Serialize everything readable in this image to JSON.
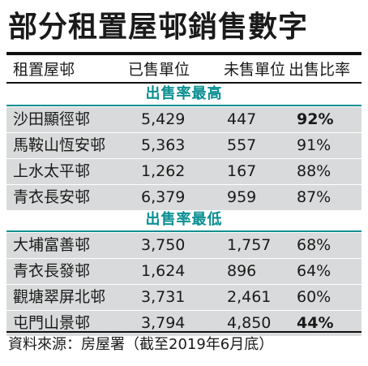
{
  "title": "部分租置屋邨銷售數字",
  "headers": [
    "租置屋邨",
    "已售單位",
    "未售單位",
    "出售比率"
  ],
  "section_high": "出售率最高",
  "section_low": "出售率最低",
  "rows_high": [
    {
      "name": "沙田顯徑邨",
      "sold": "5,429",
      "unsold": "447",
      "ratio": "92%",
      "emphasis": true
    },
    {
      "name": "馬鞍山恆安邨",
      "sold": "5,363",
      "unsold": "557",
      "ratio": "91%",
      "emphasis": false
    },
    {
      "name": "上水太平邨",
      "sold": "1,262",
      "unsold": "167",
      "ratio": "88%",
      "emphasis": false
    },
    {
      "name": "青衣長安邨",
      "sold": "6,379",
      "unsold": "959",
      "ratio": "87%",
      "emphasis": false
    }
  ],
  "rows_low": [
    {
      "name": "大埔富善邨",
      "sold": "3,750",
      "unsold": "1,757",
      "ratio": "68%",
      "emphasis": false
    },
    {
      "name": "青衣長發邨",
      "sold": "1,624",
      "unsold": "896",
      "ratio": "64%",
      "emphasis": false
    },
    {
      "name": "觀塘翠屏北邨",
      "sold": "3,731",
      "unsold": "2,461",
      "ratio": "60%",
      "emphasis": false
    },
    {
      "name": "屯門山景邨",
      "sold": "3,794",
      "unsold": "4,850",
      "ratio": "44%",
      "emphasis": true
    }
  ],
  "footer": "資料來源：房屋署（截至2019年6月底）",
  "colors": {
    "section": "#0a8f92",
    "row_bg": "#d9dadb"
  }
}
